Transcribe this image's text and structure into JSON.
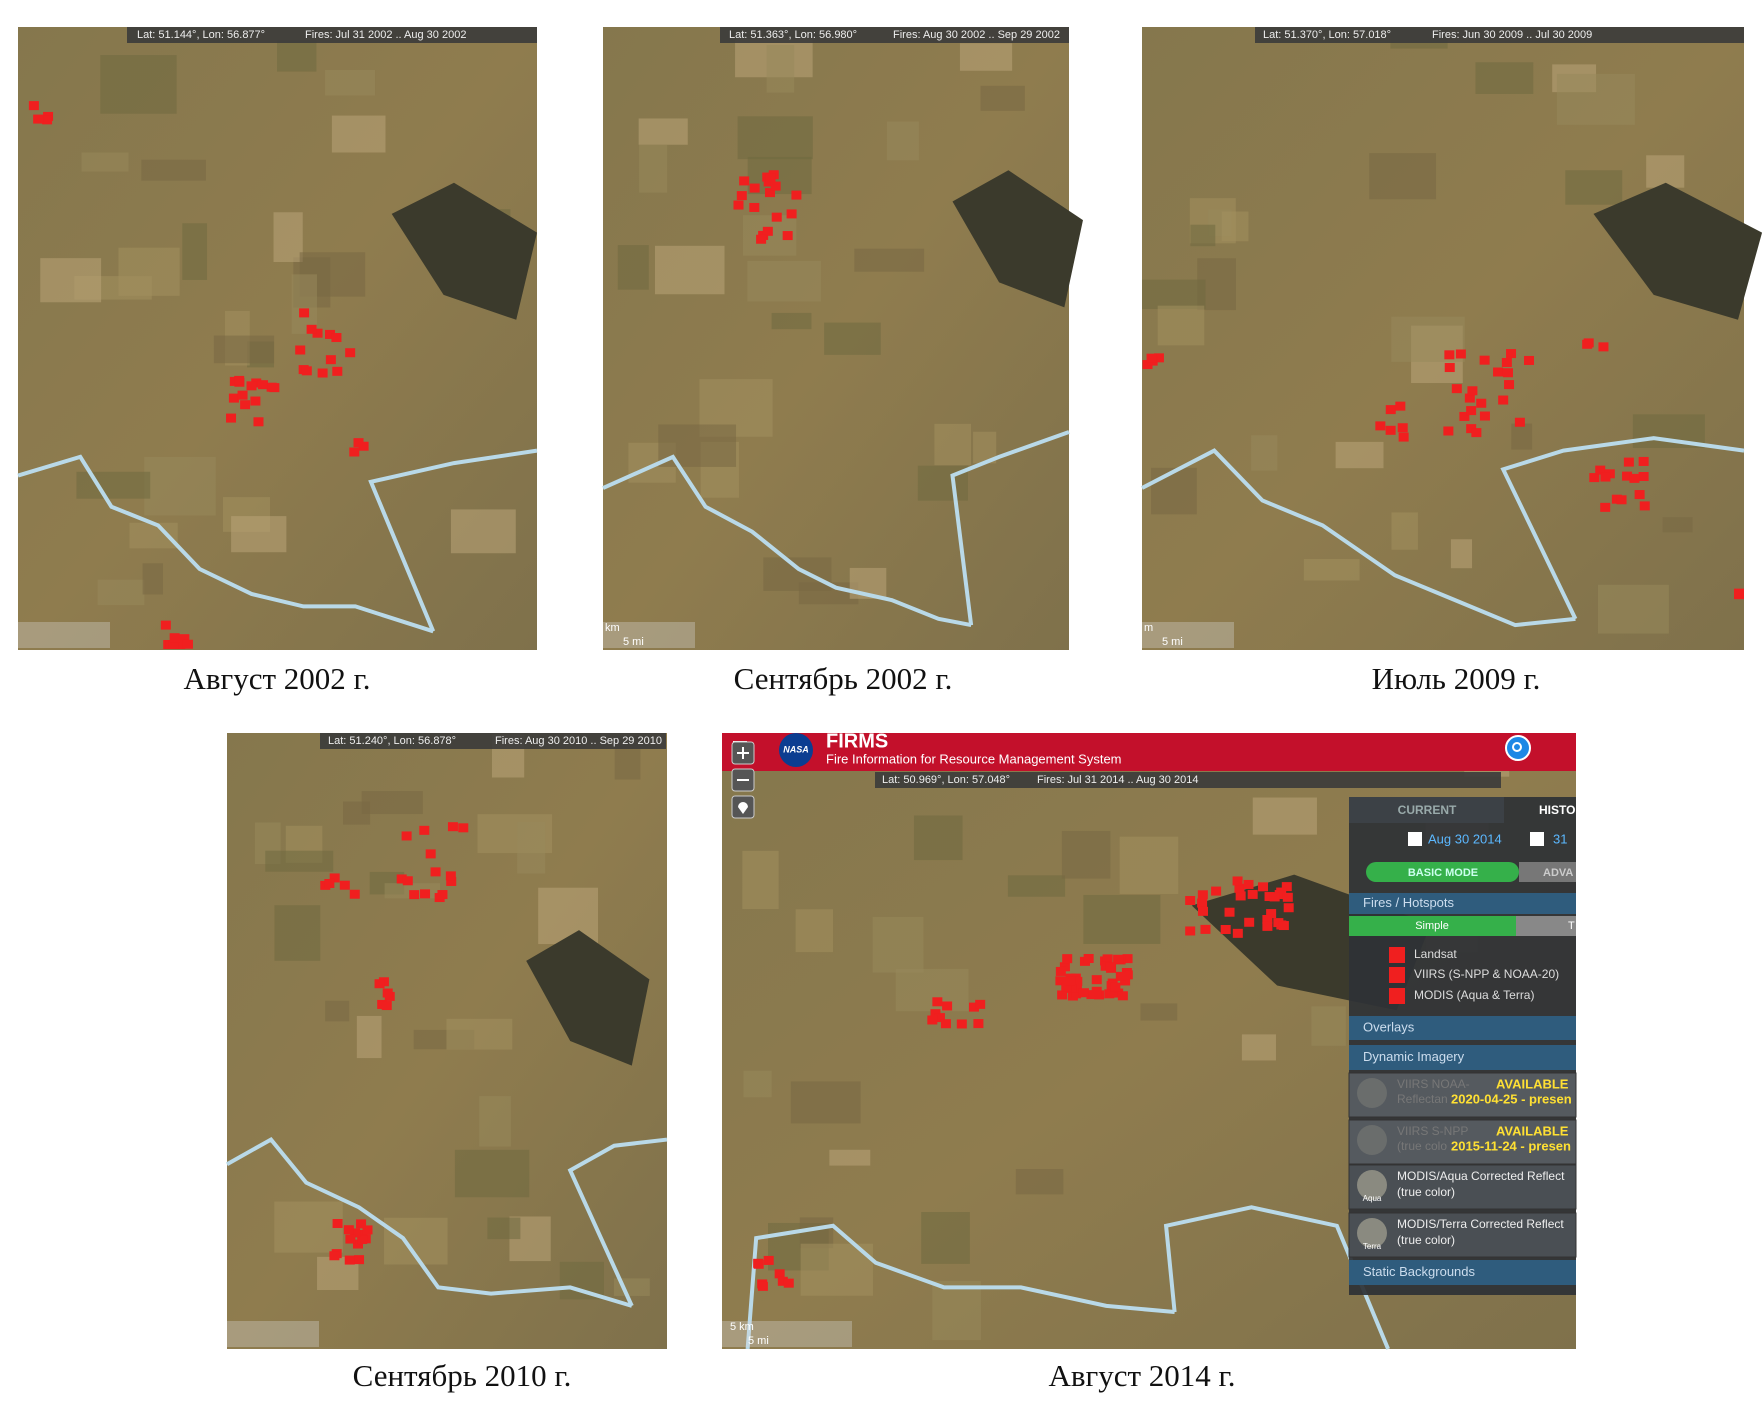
{
  "panels": [
    {
      "caption": "Август 2002 г.",
      "coords": "Lat: 51.144°, Lon: 56.877°",
      "fires": "Fires: Jul 31 2002 .. Aug 30 2002",
      "scale": []
    },
    {
      "caption": "Сентябрь 2002 г.",
      "coords": "Lat: 51.363°, Lon: 56.980°",
      "fires": "Fires: Aug 30 2002 .. Sep 29 2002",
      "scale": [
        "km",
        "5 mi"
      ]
    },
    {
      "caption": "Июль 2009 г.",
      "coords": "Lat: 51.370°, Lon: 57.018°",
      "fires": "Fires: Jun 30 2009 .. Jul 30 2009",
      "scale": [
        "m",
        "5 mi"
      ]
    },
    {
      "caption": "Сентябрь 2010 г.",
      "coords": "Lat: 51.240°, Lon: 56.878°",
      "fires": "Fires: Aug 30 2010 .. Sep 29 2010",
      "scale": []
    },
    {
      "caption": "Август 2014 г.",
      "coords": "Lat: 50.969°, Lon: 57.048°",
      "fires": "Fires: Jul 31 2014 .. Aug 30 2014",
      "scale": [
        "5 km",
        "5 mi"
      ]
    }
  ],
  "firms": {
    "logo": "NASA",
    "title": "FIRMS",
    "subtitle": "Fire Information for Resource Management System",
    "tabs": [
      "CURRENT",
      "HISTO"
    ],
    "dates": [
      "Aug 30 2014",
      "31"
    ],
    "modes": [
      "BASIC MODE",
      "ADVA"
    ],
    "fires_header": "Fires / Hotspots",
    "styles": [
      "Simple",
      "T"
    ],
    "legend": [
      "Landsat",
      "VIIRS (S-NPP & NOAA-20)",
      "MODIS (Aqua & Terra)"
    ],
    "overlays": "Overlays",
    "dynamic": "Dynamic Imagery",
    "items": [
      {
        "name": "VIIRS NOAA-",
        "desc": "Reflectan",
        "status": "AVAILABLE",
        "range": "2020-04-25 - presen"
      },
      {
        "name": "VIIRS S-NPP",
        "desc": "(true colo",
        "status": "AVAILABLE",
        "range": "2015-11-24 - presen"
      },
      {
        "name": "MODIS/Aqua Corrected Reflect",
        "desc": "(true color)",
        "thumb": "Aqua"
      },
      {
        "name": "MODIS/Terra Corrected Reflect",
        "desc": "(true color)",
        "thumb": "Terra"
      }
    ],
    "static": "Static Backgrounds"
  }
}
